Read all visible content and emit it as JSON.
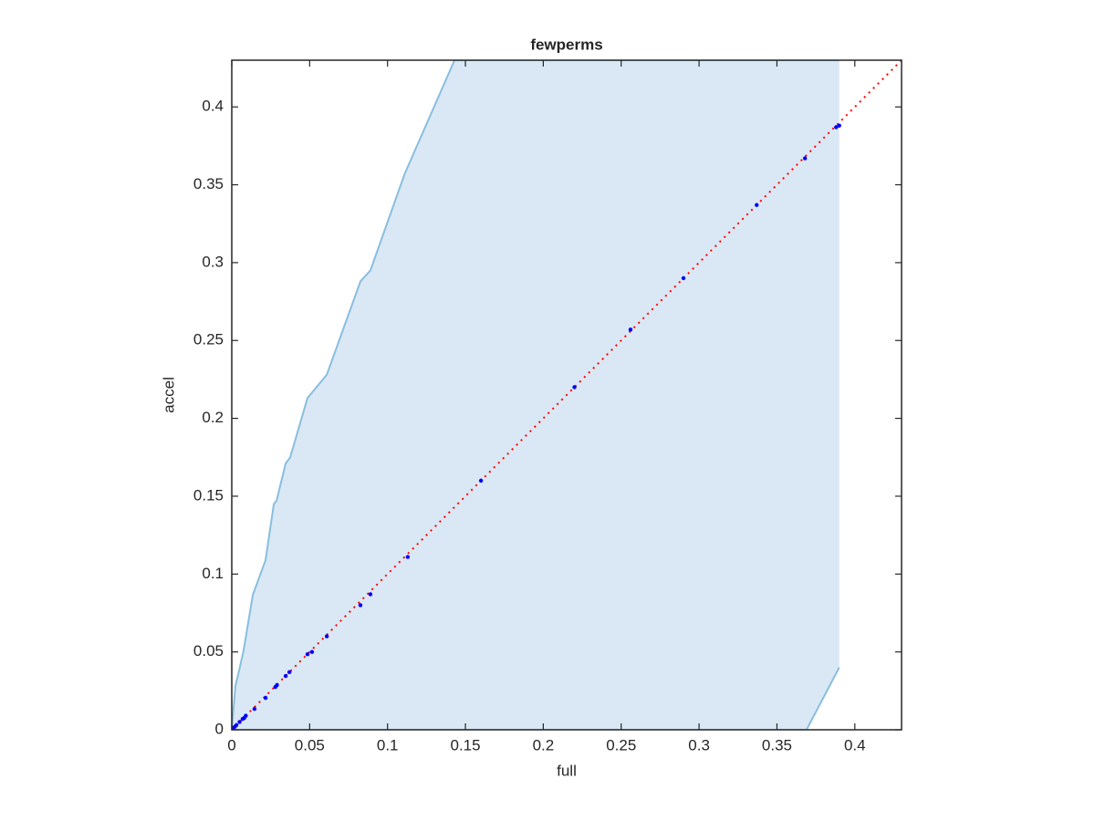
{
  "chart_data": {
    "type": "scatter",
    "title": "fewperms",
    "xlabel": "full",
    "ylabel": "accel",
    "xlim": [
      0,
      0.43
    ],
    "ylim": [
      0,
      0.43
    ],
    "xticks": [
      0,
      0.05,
      0.1,
      0.15,
      0.2,
      0.25,
      0.3,
      0.35,
      0.4
    ],
    "yticks": [
      0,
      0.05,
      0.1,
      0.15,
      0.2,
      0.25,
      0.3,
      0.35,
      0.4
    ],
    "band": {
      "fill": "#d9e8f4",
      "edge": "#89bede",
      "upper_x": [
        0,
        0.0023,
        0.0047,
        0.0076,
        0.0135,
        0.0217,
        0.027,
        0.0287,
        0.0346,
        0.0375,
        0.0486,
        0.061,
        0.0826,
        0.089,
        0.111,
        0.143,
        0.39
      ],
      "upper_y": [
        0,
        0.028,
        0.038,
        0.051,
        0.0866,
        0.109,
        0.145,
        0.147,
        0.171,
        0.175,
        0.213,
        0.228,
        0.288,
        0.295,
        0.357,
        0.43,
        0.43
      ],
      "lower_x": [
        0,
        0.369,
        0.39
      ],
      "lower_y": [
        0,
        0,
        0.04
      ]
    },
    "reference_line": {
      "color": "#ff0000",
      "x": [
        0,
        0.43
      ],
      "y": [
        0,
        0.43
      ]
    },
    "points": {
      "color": "#0000ff",
      "x": [
        0.001,
        0.002,
        0.003,
        0.005,
        0.007,
        0.008,
        0.009,
        0.0146,
        0.0217,
        0.028,
        0.029,
        0.0346,
        0.037,
        0.0486,
        0.0515,
        0.061,
        0.0826,
        0.089,
        0.113,
        0.16,
        0.22,
        0.256,
        0.29,
        0.337,
        0.368,
        0.388,
        0.39
      ],
      "y": [
        0.001,
        0.002,
        0.003,
        0.005,
        0.007,
        0.0076,
        0.009,
        0.0134,
        0.0205,
        0.0275,
        0.0287,
        0.0345,
        0.037,
        0.0485,
        0.05,
        0.06,
        0.08,
        0.087,
        0.111,
        0.16,
        0.22,
        0.257,
        0.29,
        0.337,
        0.367,
        0.387,
        0.388
      ]
    }
  }
}
